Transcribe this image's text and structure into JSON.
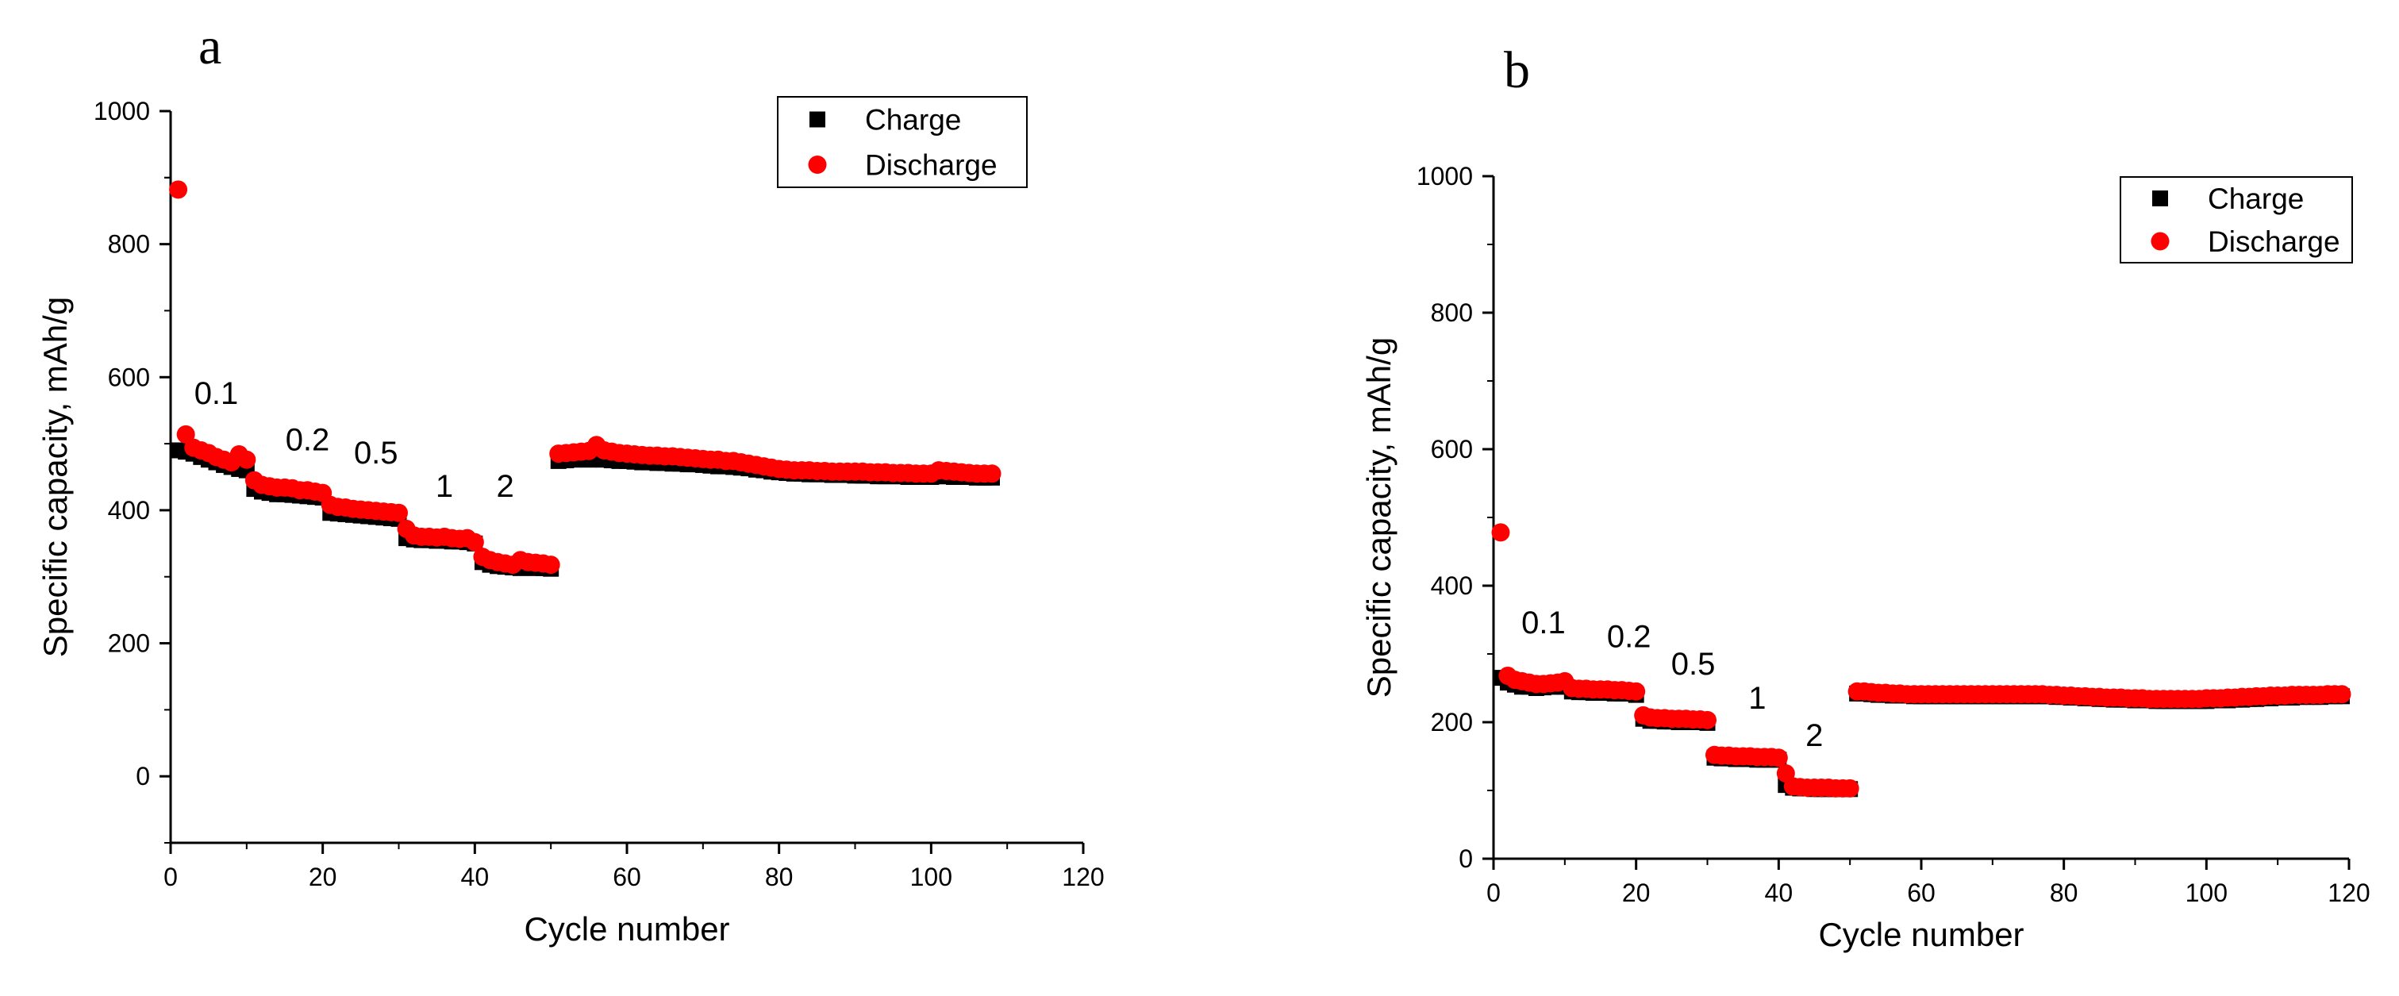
{
  "chart_data": [
    {
      "panel_label": "a",
      "type": "scatter",
      "xlabel": "Cycle number",
      "ylabel": "Specific capacity, mAh/g",
      "xlim": [
        0,
        120
      ],
      "ylim": [
        -100,
        1000
      ],
      "xticks": [
        0,
        20,
        40,
        60,
        80,
        100,
        120
      ],
      "yticks": [
        0,
        200,
        400,
        600,
        800,
        1000
      ],
      "legend": {
        "position": "top-right",
        "entries": [
          "Charge",
          "Discharge"
        ]
      },
      "annotations": [
        {
          "text": "0.1",
          "x": 6,
          "y": 560
        },
        {
          "text": "0.2",
          "x": 18,
          "y": 490
        },
        {
          "text": "0.5",
          "x": 27,
          "y": 470
        },
        {
          "text": "1",
          "x": 36,
          "y": 420
        },
        {
          "text": "2",
          "x": 44,
          "y": 420
        }
      ],
      "series": [
        {
          "name": "Charge",
          "marker": "square",
          "color": "#000000",
          "x": [
            1,
            2,
            3,
            4,
            5,
            6,
            7,
            8,
            9,
            10,
            11,
            12,
            13,
            14,
            15,
            16,
            17,
            18,
            19,
            20,
            21,
            22,
            23,
            24,
            25,
            26,
            27,
            28,
            29,
            30,
            31,
            32,
            33,
            34,
            35,
            36,
            37,
            38,
            39,
            40,
            41,
            42,
            43,
            44,
            45,
            46,
            47,
            48,
            49,
            50,
            51,
            52,
            53,
            54,
            55,
            56,
            57,
            58,
            59,
            60,
            61,
            62,
            63,
            64,
            65,
            66,
            67,
            68,
            69,
            70,
            71,
            72,
            73,
            74,
            75,
            76,
            77,
            78,
            79,
            80,
            81,
            82,
            83,
            84,
            85,
            86,
            87,
            88,
            89,
            90,
            91,
            92,
            93,
            94,
            95,
            96,
            97,
            98,
            99,
            100,
            101,
            102,
            103,
            104,
            105,
            106,
            107,
            108
          ],
          "y": [
            490,
            488,
            485,
            480,
            476,
            472,
            468,
            465,
            462,
            460,
            432,
            428,
            426,
            424,
            424,
            423,
            422,
            421,
            420,
            419,
            396,
            395,
            394,
            393,
            392,
            391,
            390,
            389,
            388,
            387,
            358,
            356,
            355,
            355,
            354,
            354,
            353,
            353,
            352,
            350,
            322,
            318,
            316,
            315,
            314,
            313,
            314,
            313,
            313,
            312,
            474,
            475,
            476,
            477,
            476,
            478,
            476,
            475,
            474,
            474,
            473,
            472,
            472,
            471,
            471,
            470,
            470,
            469,
            469,
            468,
            467,
            466,
            466,
            465,
            464,
            463,
            461,
            460,
            458,
            457,
            456,
            455,
            455,
            454,
            454,
            454,
            453,
            453,
            453,
            452,
            452,
            452,
            451,
            451,
            451,
            451,
            450,
            450,
            450,
            450,
            451,
            451,
            450,
            450,
            450,
            449,
            449,
            449
          ]
        },
        {
          "name": "Discharge",
          "marker": "circle",
          "color": "#ff0000",
          "x": [
            1,
            2,
            3,
            4,
            5,
            6,
            7,
            8,
            9,
            10,
            11,
            12,
            13,
            14,
            15,
            16,
            17,
            18,
            19,
            20,
            21,
            22,
            23,
            24,
            25,
            26,
            27,
            28,
            29,
            30,
            31,
            32,
            33,
            34,
            35,
            36,
            37,
            38,
            39,
            40,
            41,
            42,
            43,
            44,
            45,
            46,
            47,
            48,
            49,
            50,
            51,
            52,
            53,
            54,
            55,
            56,
            57,
            58,
            59,
            60,
            61,
            62,
            63,
            64,
            65,
            66,
            67,
            68,
            69,
            70,
            71,
            72,
            73,
            74,
            75,
            76,
            77,
            78,
            79,
            80,
            81,
            82,
            83,
            84,
            85,
            86,
            87,
            88,
            89,
            90,
            91,
            92,
            93,
            94,
            95,
            96,
            97,
            98,
            99,
            100,
            101,
            102,
            103,
            104,
            105,
            106,
            107,
            108
          ],
          "y": [
            882,
            514,
            494,
            490,
            486,
            480,
            476,
            472,
            484,
            476,
            445,
            438,
            436,
            434,
            434,
            433,
            430,
            430,
            428,
            426,
            408,
            405,
            404,
            402,
            401,
            400,
            399,
            398,
            397,
            396,
            372,
            362,
            360,
            360,
            359,
            360,
            358,
            357,
            358,
            352,
            330,
            325,
            322,
            320,
            318,
            325,
            322,
            321,
            320,
            318,
            485,
            486,
            487,
            488,
            489,
            498,
            490,
            488,
            486,
            485,
            484,
            483,
            482,
            482,
            481,
            481,
            480,
            479,
            478,
            477,
            476,
            476,
            474,
            474,
            472,
            470,
            468,
            466,
            464,
            462,
            461,
            460,
            460,
            460,
            459,
            459,
            458,
            458,
            458,
            458,
            458,
            457,
            457,
            457,
            456,
            456,
            456,
            455,
            455,
            455,
            460,
            459,
            458,
            457,
            456,
            455,
            455,
            455
          ]
        }
      ]
    },
    {
      "panel_label": "b",
      "type": "scatter",
      "xlabel": "Cycle number",
      "ylabel": "Specific capacity, mAh/g",
      "xlim": [
        0,
        120
      ],
      "ylim": [
        0,
        1000
      ],
      "xticks": [
        0,
        20,
        40,
        60,
        80,
        100,
        120
      ],
      "yticks": [
        0,
        200,
        400,
        600,
        800,
        1000
      ],
      "legend": {
        "position": "top-right",
        "entries": [
          "Charge",
          "Discharge"
        ]
      },
      "annotations": [
        {
          "text": "0.1",
          "x": 7,
          "y": 330
        },
        {
          "text": "0.2",
          "x": 19,
          "y": 310
        },
        {
          "text": "0.5",
          "x": 28,
          "y": 270
        },
        {
          "text": "1",
          "x": 37,
          "y": 220
        },
        {
          "text": "2",
          "x": 45,
          "y": 165
        }
      ],
      "series": [
        {
          "name": "Charge",
          "marker": "square",
          "color": "#000000",
          "x": [
            1,
            2,
            3,
            4,
            5,
            6,
            7,
            8,
            9,
            10,
            11,
            12,
            13,
            14,
            15,
            16,
            17,
            18,
            19,
            20,
            21,
            22,
            23,
            24,
            25,
            26,
            27,
            28,
            29,
            30,
            31,
            32,
            33,
            34,
            35,
            36,
            37,
            38,
            39,
            40,
            41,
            42,
            43,
            44,
            45,
            46,
            47,
            48,
            49,
            50,
            51,
            52,
            53,
            54,
            55,
            56,
            57,
            58,
            59,
            60,
            61,
            62,
            63,
            64,
            65,
            66,
            67,
            68,
            69,
            70,
            71,
            72,
            73,
            74,
            75,
            76,
            77,
            78,
            79,
            80,
            81,
            82,
            83,
            84,
            85,
            86,
            87,
            88,
            89,
            90,
            91,
            92,
            93,
            94,
            95,
            96,
            97,
            98,
            99,
            100,
            101,
            102,
            103,
            104,
            105,
            106,
            107,
            108,
            109,
            110,
            111,
            112,
            113,
            114,
            115,
            116,
            117,
            118,
            119
          ],
          "y": [
            265,
            258,
            255,
            252,
            252,
            250,
            251,
            252,
            252,
            252,
            245,
            244,
            244,
            243,
            243,
            243,
            242,
            242,
            242,
            240,
            205,
            202,
            202,
            201,
            201,
            200,
            200,
            200,
            200,
            199,
            148,
            147,
            147,
            146,
            146,
            146,
            145,
            145,
            145,
            145,
            108,
            104,
            103,
            103,
            102,
            102,
            102,
            102,
            102,
            102,
            242,
            242,
            241,
            240,
            240,
            239,
            239,
            239,
            238,
            238,
            238,
            238,
            238,
            238,
            238,
            238,
            238,
            238,
            238,
            238,
            238,
            238,
            238,
            238,
            238,
            238,
            238,
            238,
            237,
            237,
            236,
            236,
            235,
            235,
            234,
            234,
            233,
            233,
            233,
            232,
            232,
            232,
            231,
            231,
            231,
            231,
            231,
            231,
            231,
            231,
            232,
            232,
            232,
            233,
            233,
            234,
            234,
            235,
            235,
            236,
            236,
            236,
            237,
            237,
            237,
            237,
            238,
            238,
            238
          ]
        },
        {
          "name": "Discharge",
          "marker": "circle",
          "color": "#ff0000",
          "x": [
            1,
            2,
            3,
            4,
            5,
            6,
            7,
            8,
            9,
            10,
            11,
            12,
            13,
            14,
            15,
            16,
            17,
            18,
            19,
            20,
            21,
            22,
            23,
            24,
            25,
            26,
            27,
            28,
            29,
            30,
            31,
            32,
            33,
            34,
            35,
            36,
            37,
            38,
            39,
            40,
            41,
            42,
            43,
            44,
            45,
            46,
            47,
            48,
            49,
            50,
            51,
            52,
            53,
            54,
            55,
            56,
            57,
            58,
            59,
            60,
            61,
            62,
            63,
            64,
            65,
            66,
            67,
            68,
            69,
            70,
            71,
            72,
            73,
            74,
            75,
            76,
            77,
            78,
            79,
            80,
            81,
            82,
            83,
            84,
            85,
            86,
            87,
            88,
            89,
            90,
            91,
            92,
            93,
            94,
            95,
            96,
            97,
            98,
            99,
            100,
            101,
            102,
            103,
            104,
            105,
            106,
            107,
            108,
            109,
            110,
            111,
            112,
            113,
            114,
            115,
            116,
            117,
            118,
            119
          ],
          "y": [
            478,
            268,
            262,
            260,
            258,
            256,
            256,
            257,
            258,
            260,
            250,
            249,
            249,
            248,
            248,
            248,
            247,
            247,
            246,
            245,
            210,
            207,
            206,
            206,
            205,
            205,
            205,
            204,
            204,
            203,
            152,
            151,
            151,
            150,
            150,
            150,
            149,
            149,
            149,
            148,
            125,
            106,
            105,
            104,
            104,
            104,
            104,
            103,
            103,
            103,
            245,
            245,
            244,
            243,
            243,
            242,
            242,
            241,
            241,
            241,
            241,
            241,
            241,
            241,
            241,
            241,
            241,
            241,
            241,
            241,
            241,
            241,
            241,
            241,
            241,
            241,
            241,
            240,
            240,
            239,
            239,
            238,
            238,
            237,
            237,
            236,
            236,
            236,
            235,
            235,
            235,
            234,
            234,
            234,
            234,
            234,
            234,
            234,
            234,
            235,
            235,
            235,
            236,
            236,
            237,
            237,
            238,
            238,
            239,
            239,
            239,
            240,
            240,
            240,
            240,
            240,
            241,
            241,
            241
          ]
        }
      ]
    }
  ]
}
